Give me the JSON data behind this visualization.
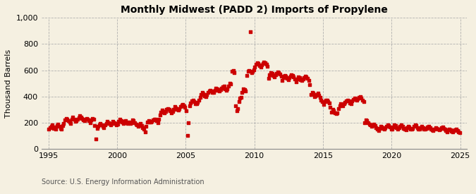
{
  "title": "Monthly Midwest (PADD 2) Imports of Propylene",
  "ylabel": "Thousand Barrels",
  "source_text": "Source: U.S. Energy Information Administration",
  "background_color": "#f5f0e1",
  "dot_color": "#cc0000",
  "xlim": [
    1994.5,
    2025.5
  ],
  "ylim": [
    0,
    1000
  ],
  "yticks": [
    0,
    200,
    400,
    600,
    800,
    1000
  ],
  "ytick_labels": [
    "0",
    "200",
    "400",
    "600",
    "800",
    "1,000"
  ],
  "xticks": [
    1995,
    2000,
    2005,
    2010,
    2015,
    2020,
    2025
  ],
  "dates": [
    1995.04,
    1995.12,
    1995.21,
    1995.29,
    1995.37,
    1995.46,
    1995.54,
    1995.62,
    1995.71,
    1995.79,
    1995.87,
    1995.96,
    1996.04,
    1996.12,
    1996.21,
    1996.29,
    1996.37,
    1996.46,
    1996.54,
    1996.62,
    1996.71,
    1996.79,
    1996.87,
    1996.96,
    1997.04,
    1997.12,
    1997.21,
    1997.29,
    1997.37,
    1997.46,
    1997.54,
    1997.62,
    1997.71,
    1997.79,
    1997.87,
    1997.96,
    1998.04,
    1998.12,
    1998.21,
    1998.29,
    1998.37,
    1998.46,
    1998.54,
    1998.62,
    1998.71,
    1998.79,
    1998.87,
    1998.96,
    1999.04,
    1999.12,
    1999.21,
    1999.29,
    1999.37,
    1999.46,
    1999.54,
    1999.62,
    1999.71,
    1999.79,
    1999.87,
    1999.96,
    2000.04,
    2000.12,
    2000.21,
    2000.29,
    2000.37,
    2000.46,
    2000.54,
    2000.62,
    2000.71,
    2000.79,
    2000.87,
    2000.96,
    2001.04,
    2001.12,
    2001.21,
    2001.29,
    2001.37,
    2001.46,
    2001.54,
    2001.62,
    2001.71,
    2001.79,
    2001.87,
    2001.96,
    2002.04,
    2002.12,
    2002.21,
    2002.29,
    2002.37,
    2002.46,
    2002.54,
    2002.62,
    2002.71,
    2002.79,
    2002.87,
    2002.96,
    2003.04,
    2003.12,
    2003.21,
    2003.29,
    2003.37,
    2003.46,
    2003.54,
    2003.62,
    2003.71,
    2003.79,
    2003.87,
    2003.96,
    2004.04,
    2004.12,
    2004.21,
    2004.29,
    2004.37,
    2004.46,
    2004.54,
    2004.62,
    2004.71,
    2004.79,
    2004.87,
    2004.96,
    2005.04,
    2005.12,
    2005.21,
    2005.29,
    2005.37,
    2005.46,
    2005.54,
    2005.62,
    2005.71,
    2005.79,
    2005.87,
    2005.96,
    2006.04,
    2006.12,
    2006.21,
    2006.29,
    2006.37,
    2006.46,
    2006.54,
    2006.62,
    2006.71,
    2006.79,
    2006.87,
    2006.96,
    2007.04,
    2007.12,
    2007.21,
    2007.29,
    2007.37,
    2007.46,
    2007.54,
    2007.62,
    2007.71,
    2007.79,
    2007.87,
    2007.96,
    2008.04,
    2008.12,
    2008.21,
    2008.29,
    2008.37,
    2008.46,
    2008.54,
    2008.62,
    2008.71,
    2008.79,
    2008.87,
    2008.96,
    2009.04,
    2009.12,
    2009.21,
    2009.29,
    2009.37,
    2009.46,
    2009.54,
    2009.62,
    2009.71,
    2009.79,
    2009.87,
    2009.96,
    2010.04,
    2010.12,
    2010.21,
    2010.29,
    2010.37,
    2010.46,
    2010.54,
    2010.62,
    2010.71,
    2010.79,
    2010.87,
    2010.96,
    2011.04,
    2011.12,
    2011.21,
    2011.29,
    2011.37,
    2011.46,
    2011.54,
    2011.62,
    2011.71,
    2011.79,
    2011.87,
    2011.96,
    2012.04,
    2012.12,
    2012.21,
    2012.29,
    2012.37,
    2012.46,
    2012.54,
    2012.62,
    2012.71,
    2012.79,
    2012.87,
    2012.96,
    2013.04,
    2013.12,
    2013.21,
    2013.29,
    2013.37,
    2013.46,
    2013.54,
    2013.62,
    2013.71,
    2013.79,
    2013.87,
    2013.96,
    2014.04,
    2014.12,
    2014.21,
    2014.29,
    2014.37,
    2014.46,
    2014.54,
    2014.62,
    2014.71,
    2014.79,
    2014.87,
    2014.96,
    2015.04,
    2015.12,
    2015.21,
    2015.29,
    2015.37,
    2015.46,
    2015.54,
    2015.62,
    2015.71,
    2015.79,
    2015.87,
    2015.96,
    2016.04,
    2016.12,
    2016.21,
    2016.29,
    2016.37,
    2016.46,
    2016.54,
    2016.62,
    2016.71,
    2016.79,
    2016.87,
    2016.96,
    2017.04,
    2017.12,
    2017.21,
    2017.29,
    2017.37,
    2017.46,
    2017.54,
    2017.62,
    2017.71,
    2017.79,
    2017.87,
    2017.96,
    2018.04,
    2018.12,
    2018.21,
    2018.29,
    2018.37,
    2018.46,
    2018.54,
    2018.62,
    2018.71,
    2018.79,
    2018.87,
    2018.96,
    2019.04,
    2019.12,
    2019.21,
    2019.29,
    2019.37,
    2019.46,
    2019.54,
    2019.62,
    2019.71,
    2019.79,
    2019.87,
    2019.96,
    2020.04,
    2020.12,
    2020.21,
    2020.29,
    2020.37,
    2020.46,
    2020.54,
    2020.62,
    2020.71,
    2020.79,
    2020.87,
    2020.96,
    2021.04,
    2021.12,
    2021.21,
    2021.29,
    2021.37,
    2021.46,
    2021.54,
    2021.62,
    2021.71,
    2021.79,
    2021.87,
    2021.96,
    2022.04,
    2022.12,
    2022.21,
    2022.29,
    2022.37,
    2022.46,
    2022.54,
    2022.62,
    2022.71,
    2022.79,
    2022.87,
    2022.96,
    2023.04,
    2023.12,
    2023.21,
    2023.29,
    2023.37,
    2023.46,
    2023.54,
    2023.62,
    2023.71,
    2023.79,
    2023.87,
    2023.96,
    2024.04,
    2024.12,
    2024.21,
    2024.29,
    2024.37,
    2024.46,
    2024.54,
    2024.62,
    2024.71,
    2024.79,
    2024.87,
    2024.96
  ],
  "values": [
    150,
    165,
    175,
    185,
    160,
    170,
    155,
    180,
    190,
    175,
    160,
    155,
    180,
    195,
    220,
    235,
    225,
    215,
    205,
    195,
    230,
    245,
    225,
    210,
    215,
    225,
    240,
    255,
    245,
    235,
    220,
    215,
    225,
    235,
    225,
    215,
    200,
    220,
    235,
    225,
    180,
    75,
    160,
    175,
    185,
    195,
    185,
    175,
    165,
    185,
    195,
    210,
    200,
    195,
    185,
    195,
    210,
    200,
    195,
    185,
    190,
    210,
    225,
    215,
    205,
    195,
    210,
    215,
    200,
    195,
    205,
    195,
    200,
    220,
    215,
    200,
    190,
    185,
    175,
    185,
    195,
    180,
    165,
    155,
    130,
    175,
    205,
    215,
    205,
    205,
    210,
    220,
    230,
    225,
    215,
    200,
    230,
    260,
    280,
    295,
    285,
    275,
    285,
    300,
    310,
    305,
    290,
    275,
    285,
    305,
    325,
    315,
    300,
    295,
    310,
    325,
    335,
    340,
    330,
    320,
    290,
    105,
    200,
    330,
    350,
    365,
    375,
    360,
    345,
    345,
    355,
    375,
    395,
    415,
    430,
    420,
    405,
    400,
    415,
    430,
    440,
    445,
    440,
    430,
    430,
    450,
    465,
    460,
    445,
    440,
    455,
    465,
    475,
    480,
    460,
    450,
    460,
    480,
    500,
    495,
    590,
    595,
    580,
    330,
    290,
    310,
    360,
    390,
    395,
    430,
    460,
    455,
    440,
    560,
    590,
    600,
    890,
    580,
    590,
    605,
    625,
    645,
    655,
    650,
    635,
    625,
    640,
    650,
    660,
    655,
    645,
    630,
    540,
    565,
    580,
    575,
    560,
    550,
    565,
    575,
    585,
    580,
    570,
    555,
    520,
    545,
    560,
    555,
    540,
    530,
    545,
    555,
    565,
    560,
    550,
    535,
    510,
    535,
    550,
    545,
    530,
    520,
    535,
    545,
    555,
    550,
    540,
    525,
    490,
    415,
    430,
    425,
    400,
    405,
    415,
    425,
    410,
    395,
    370,
    360,
    340,
    360,
    375,
    370,
    360,
    350,
    320,
    280,
    300,
    290,
    275,
    270,
    275,
    310,
    330,
    345,
    335,
    330,
    345,
    355,
    365,
    375,
    365,
    350,
    345,
    365,
    380,
    390,
    380,
    370,
    385,
    395,
    400,
    390,
    375,
    360,
    200,
    220,
    215,
    200,
    190,
    185,
    175,
    185,
    190,
    180,
    165,
    150,
    140,
    160,
    175,
    170,
    160,
    155,
    165,
    175,
    185,
    180,
    170,
    155,
    155,
    170,
    185,
    180,
    165,
    155,
    165,
    175,
    185,
    175,
    160,
    150,
    145,
    165,
    175,
    170,
    155,
    150,
    160,
    175,
    185,
    180,
    165,
    155,
    150,
    165,
    175,
    165,
    155,
    150,
    160,
    170,
    175,
    165,
    155,
    145,
    140,
    155,
    165,
    160,
    150,
    145,
    155,
    165,
    170,
    160,
    150,
    140,
    130,
    145,
    155,
    145,
    135,
    130,
    140,
    145,
    150,
    140,
    132,
    128
  ]
}
